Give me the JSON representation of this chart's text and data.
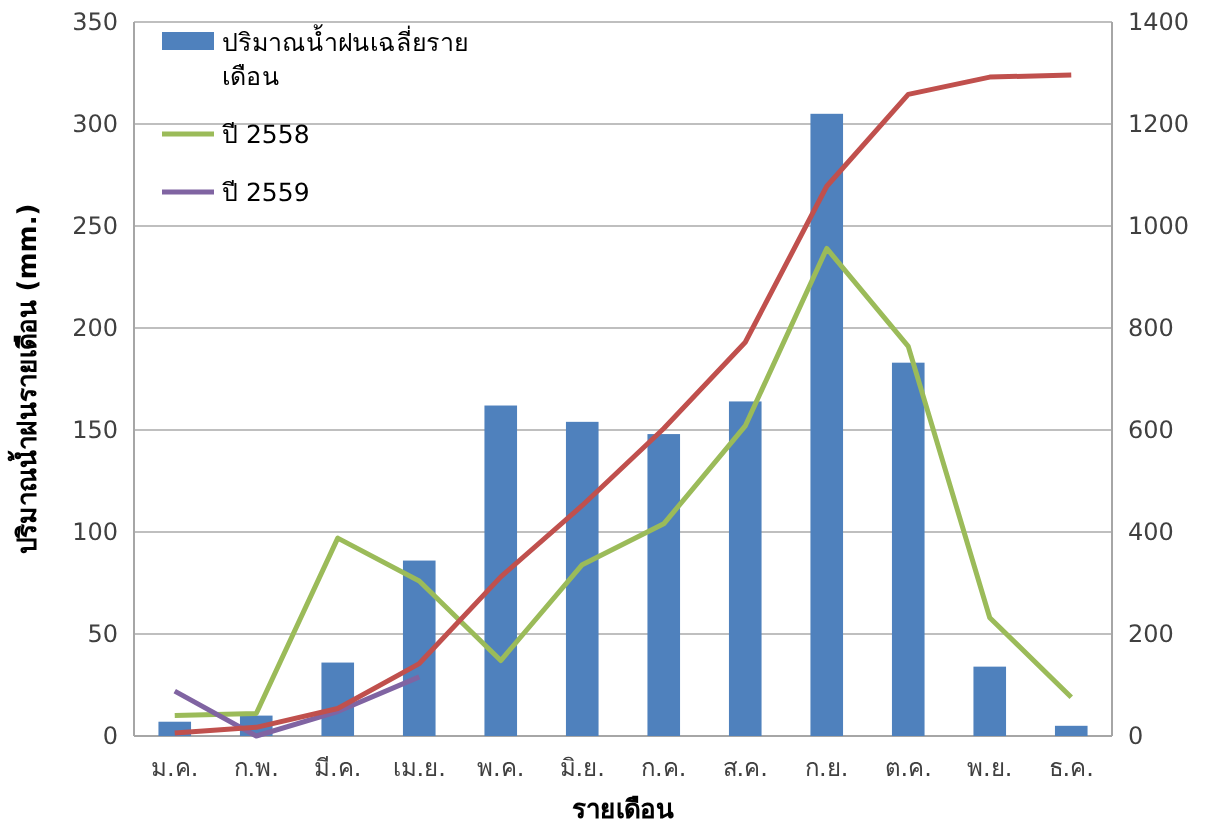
{
  "chart_data": {
    "type": "bar",
    "xlabel": "รายเดือน",
    "ylabel": "ปริมาณน้ำฝนรายเดือน (mm.)",
    "categories": [
      "ม.ค.",
      "ก.พ.",
      "มี.ค.",
      "เม.ย.",
      "พ.ค.",
      "มิ.ย.",
      "ก.ค.",
      "ส.ค.",
      "ก.ย.",
      "ต.ค.",
      "พ.ย.",
      "ธ.ค."
    ],
    "series": [
      {
        "name": "ปริมาณน้ำฝนเฉลี่ยรายเดือน",
        "color": "#4f81bd",
        "values": [
          7,
          10,
          36,
          86,
          162,
          154,
          148,
          164,
          305,
          183,
          34,
          5
        ]
      },
      {
        "name": "ปี 2558",
        "type": "line",
        "color": "#9bbb59",
        "values": [
          10,
          11,
          97,
          76,
          37,
          84,
          104,
          152,
          239,
          191,
          58,
          19
        ]
      },
      {
        "name": "ปี 2559",
        "type": "line",
        "color": "#8064a2",
        "values": [
          22,
          0,
          12,
          29,
          null,
          null,
          null,
          null,
          null,
          null,
          null,
          null
        ]
      },
      {
        "type": "line",
        "axis": "y2",
        "color": "#c0504d",
        "values": [
          6,
          17,
          54,
          142,
          312,
          452,
          603,
          772,
          1078,
          1258,
          1292,
          1296
        ]
      }
    ],
    "ylim": [
      0,
      350
    ],
    "yticks": [
      0,
      50,
      100,
      150,
      200,
      250,
      300,
      350
    ],
    "y2lim": [
      0,
      1400
    ],
    "y2ticks": [
      0,
      200,
      400,
      600,
      800,
      1000,
      1200,
      1400
    ],
    "grid": "y",
    "legend": "top left",
    "marker": "none",
    "line_style": "solid"
  }
}
